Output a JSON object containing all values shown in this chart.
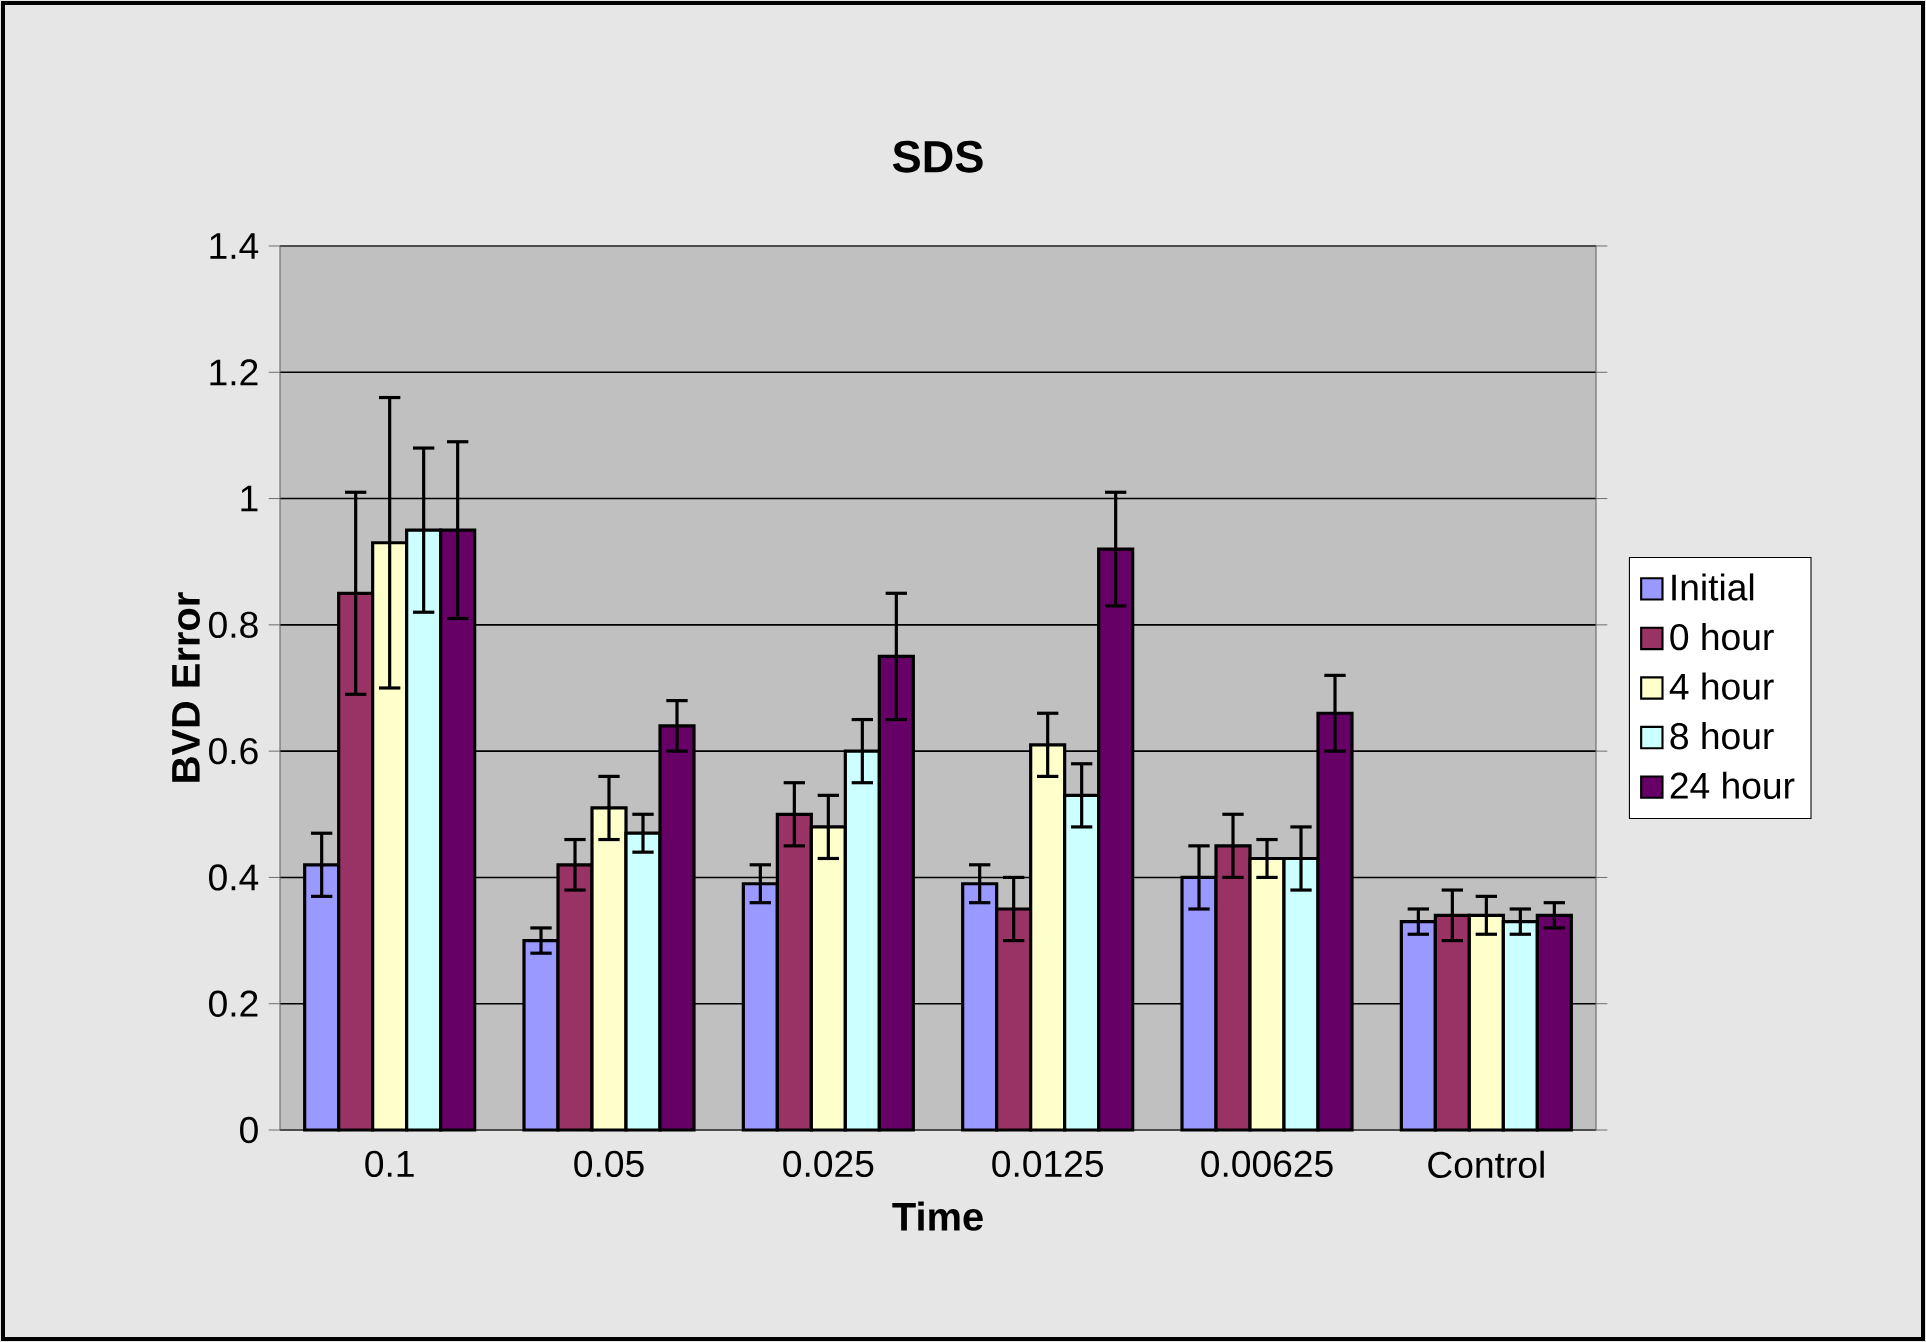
{
  "chart_data": {
    "type": "bar",
    "title": "SDS",
    "xlabel": "Time",
    "ylabel": "BVD Error",
    "categories": [
      "0.1",
      "0.05",
      "0.025",
      "0.0125",
      "0.00625",
      "Control"
    ],
    "series": [
      {
        "name": "Initial",
        "color": "#9999ff",
        "values": [
          0.42,
          0.3,
          0.39,
          0.39,
          0.4,
          0.33
        ],
        "errors": [
          0.05,
          0.02,
          0.03,
          0.03,
          0.05,
          0.02
        ]
      },
      {
        "name": "0 hour",
        "color": "#993366",
        "values": [
          0.85,
          0.42,
          0.5,
          0.35,
          0.45,
          0.34
        ],
        "errors": [
          0.16,
          0.04,
          0.05,
          0.05,
          0.05,
          0.04
        ]
      },
      {
        "name": "4 hour",
        "color": "#ffffcc",
        "values": [
          0.93,
          0.51,
          0.48,
          0.61,
          0.43,
          0.34
        ],
        "errors": [
          0.23,
          0.05,
          0.05,
          0.05,
          0.03,
          0.03
        ]
      },
      {
        "name": "8 hour",
        "color": "#ccffff",
        "values": [
          0.95,
          0.47,
          0.6,
          0.53,
          0.43,
          0.33
        ],
        "errors": [
          0.13,
          0.03,
          0.05,
          0.05,
          0.05,
          0.02
        ]
      },
      {
        "name": "24 hour",
        "color": "#660066",
        "values": [
          0.95,
          0.64,
          0.75,
          0.92,
          0.66,
          0.34
        ],
        "errors": [
          0.14,
          0.04,
          0.1,
          0.09,
          0.06,
          0.02
        ]
      }
    ],
    "ylim": [
      0,
      1.4
    ],
    "yticks": [
      0,
      0.2,
      0.4,
      0.6,
      0.8,
      1,
      1.2,
      1.4
    ],
    "grid": "y",
    "legend": "right"
  }
}
